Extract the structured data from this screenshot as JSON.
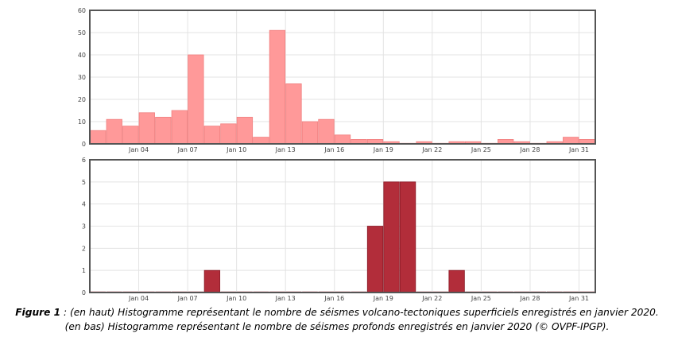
{
  "chart_data": [
    {
      "type": "bar",
      "title": "",
      "xlabel": "",
      "ylabel": "",
      "ylim": [
        0,
        60
      ],
      "yticks": [
        0,
        10,
        20,
        30,
        40,
        50,
        60
      ],
      "grid": true,
      "bar_color": "#ff9999",
      "bar_stroke": "#f08080",
      "x_tick_labels": [
        "Jan 04",
        "Jan 07",
        "Jan 10",
        "Jan 13",
        "Jan 16",
        "Jan 19",
        "Jan 22",
        "Jan 25",
        "Jan 28",
        "Jan 31"
      ],
      "categories": [
        "Jan 01",
        "Jan 02",
        "Jan 03",
        "Jan 04",
        "Jan 05",
        "Jan 06",
        "Jan 07",
        "Jan 08",
        "Jan 09",
        "Jan 10",
        "Jan 11",
        "Jan 12",
        "Jan 13",
        "Jan 14",
        "Jan 15",
        "Jan 16",
        "Jan 17",
        "Jan 18",
        "Jan 19",
        "Jan 20",
        "Jan 21",
        "Jan 22",
        "Jan 23",
        "Jan 24",
        "Jan 25",
        "Jan 26",
        "Jan 27",
        "Jan 28",
        "Jan 29",
        "Jan 30",
        "Jan 31"
      ],
      "values": [
        6,
        11,
        8,
        14,
        12,
        15,
        40,
        8,
        9,
        12,
        3,
        51,
        27,
        10,
        11,
        4,
        2,
        2,
        1,
        0,
        1,
        0,
        1,
        1,
        0,
        2,
        1,
        0,
        1,
        3,
        2
      ]
    },
    {
      "type": "bar",
      "title": "",
      "xlabel": "",
      "ylabel": "",
      "ylim": [
        0,
        6
      ],
      "yticks": [
        0,
        1,
        2,
        3,
        4,
        5,
        6
      ],
      "grid": true,
      "bar_color": "#b22d3a",
      "bar_stroke": "#8a1c28",
      "x_tick_labels": [
        "Jan 04",
        "Jan 07",
        "Jan 10",
        "Jan 13",
        "Jan 16",
        "Jan 19",
        "Jan 22",
        "Jan 25",
        "Jan 28",
        "Jan 31"
      ],
      "categories": [
        "Jan 01",
        "Jan 02",
        "Jan 03",
        "Jan 04",
        "Jan 05",
        "Jan 06",
        "Jan 07",
        "Jan 08",
        "Jan 09",
        "Jan 10",
        "Jan 11",
        "Jan 12",
        "Jan 13",
        "Jan 14",
        "Jan 15",
        "Jan 16",
        "Jan 17",
        "Jan 18",
        "Jan 19",
        "Jan 20",
        "Jan 21",
        "Jan 22",
        "Jan 23",
        "Jan 24",
        "Jan 25",
        "Jan 26",
        "Jan 27",
        "Jan 28",
        "Jan 29",
        "Jan 30",
        "Jan 31"
      ],
      "values": [
        0,
        0,
        0,
        0,
        0,
        0,
        0,
        1,
        0,
        0,
        0,
        0,
        0,
        0,
        0,
        0,
        0,
        3,
        5,
        5,
        0,
        0,
        1,
        0,
        0,
        0,
        0,
        0,
        0,
        0,
        0
      ]
    }
  ],
  "caption": {
    "label": "Figure 1",
    "line1": " : (en haut) Histogramme représentant le nombre de séismes volcano-tectoniques superficiels enregistrés en janvier 2020.",
    "line2": "(en bas) Histogramme représentant le nombre de séismes profonds enregistrés en janvier 2020 (© OVPF-IPGP)."
  }
}
